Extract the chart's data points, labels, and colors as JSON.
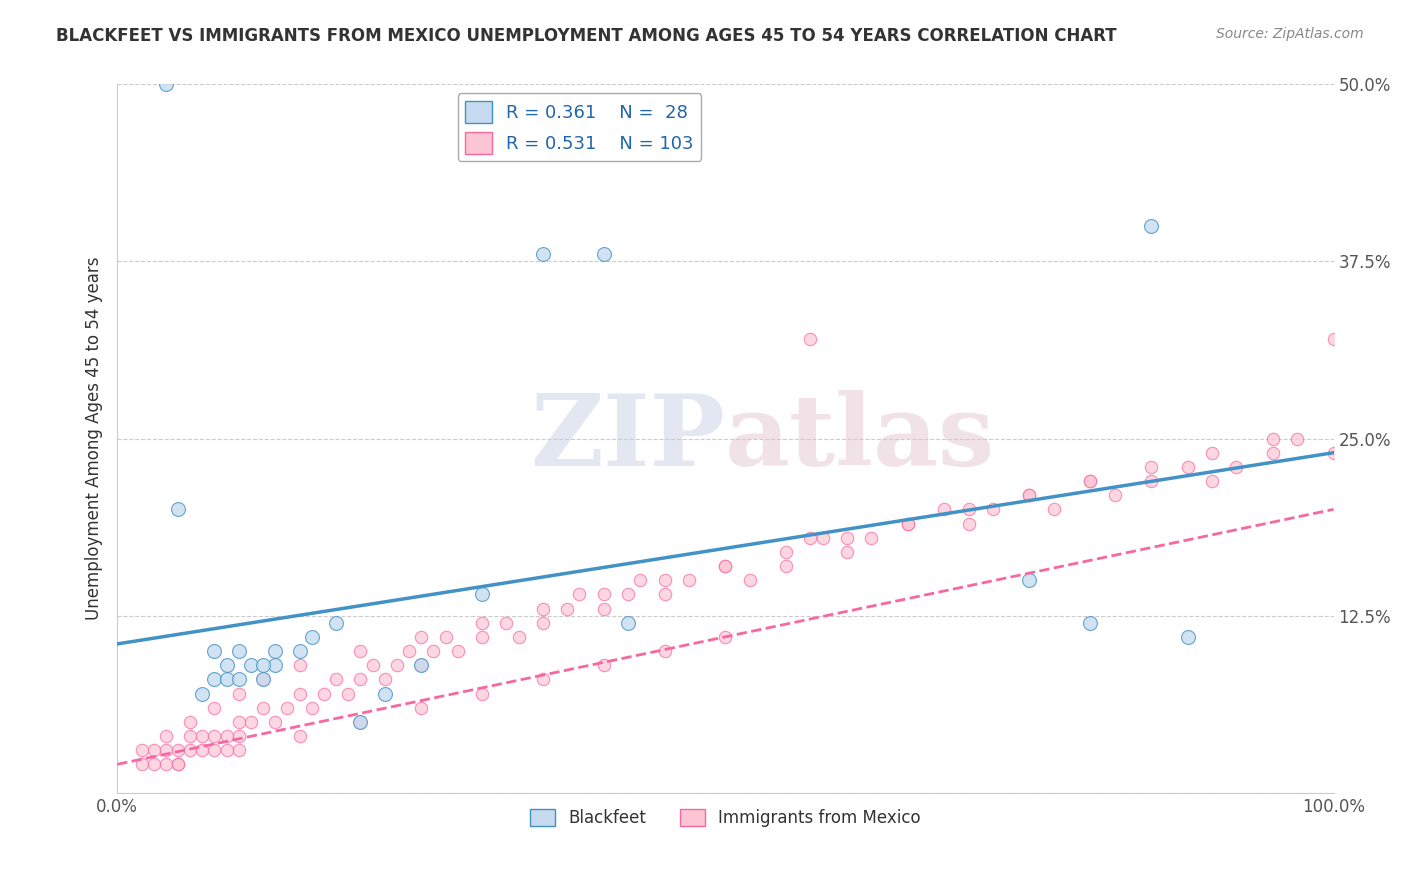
{
  "title": "BLACKFEET VS IMMIGRANTS FROM MEXICO UNEMPLOYMENT AMONG AGES 45 TO 54 YEARS CORRELATION CHART",
  "source": "Source: ZipAtlas.com",
  "ylabel": "Unemployment Among Ages 45 to 54 years",
  "legend_r": [
    0.361,
    0.531
  ],
  "legend_n": [
    28,
    103
  ],
  "xlim": [
    0,
    100
  ],
  "ylim": [
    0,
    50
  ],
  "yticks": [
    0,
    12.5,
    25.0,
    37.5,
    50.0
  ],
  "ytick_labels": [
    "",
    "12.5%",
    "25.0%",
    "37.5%",
    "50.0%"
  ],
  "blue_fill": "#c6dbef",
  "pink_fill": "#fcc5d3",
  "line_blue": "#4292c6",
  "line_pink": "#f768a1",
  "watermark_zip": "ZIP",
  "watermark_atlas": "atlas",
  "blue_x": [
    4,
    5,
    7,
    8,
    9,
    10,
    11,
    12,
    13,
    15,
    16,
    18,
    20,
    22,
    25,
    30,
    35,
    8,
    9,
    10,
    12,
    13,
    75,
    80,
    85,
    88,
    40,
    42
  ],
  "blue_y": [
    50,
    20,
    7,
    8,
    9,
    10,
    9,
    8,
    9,
    10,
    11,
    12,
    5,
    7,
    9,
    14,
    38,
    10,
    8,
    8,
    9,
    10,
    15,
    12,
    40,
    11,
    38,
    12
  ],
  "pink_x": [
    2,
    3,
    3,
    4,
    4,
    5,
    5,
    6,
    6,
    7,
    7,
    8,
    8,
    9,
    9,
    10,
    10,
    11,
    12,
    13,
    14,
    15,
    16,
    17,
    18,
    19,
    20,
    21,
    22,
    23,
    24,
    25,
    26,
    27,
    28,
    30,
    32,
    33,
    35,
    37,
    38,
    40,
    42,
    43,
    45,
    47,
    50,
    52,
    55,
    57,
    58,
    60,
    62,
    65,
    68,
    70,
    72,
    75,
    77,
    80,
    82,
    85,
    88,
    90,
    92,
    95,
    97,
    100,
    2,
    4,
    6,
    8,
    10,
    12,
    15,
    20,
    25,
    30,
    35,
    40,
    45,
    50,
    55,
    60,
    65,
    70,
    75,
    80,
    85,
    90,
    95,
    100,
    5,
    10,
    15,
    20,
    25,
    30,
    35,
    40,
    45,
    50,
    57
  ],
  "pink_y": [
    2,
    3,
    2,
    3,
    2,
    3,
    2,
    3,
    4,
    4,
    3,
    4,
    3,
    4,
    3,
    5,
    4,
    5,
    6,
    5,
    6,
    7,
    6,
    7,
    8,
    7,
    8,
    9,
    8,
    9,
    10,
    9,
    10,
    11,
    10,
    11,
    12,
    11,
    12,
    13,
    14,
    13,
    14,
    15,
    14,
    15,
    16,
    15,
    16,
    32,
    18,
    17,
    18,
    19,
    20,
    19,
    20,
    21,
    20,
    22,
    21,
    22,
    23,
    22,
    23,
    24,
    25,
    24,
    3,
    4,
    5,
    6,
    7,
    8,
    9,
    10,
    11,
    12,
    13,
    14,
    15,
    16,
    17,
    18,
    19,
    20,
    21,
    22,
    23,
    24,
    25,
    32,
    2,
    3,
    4,
    5,
    6,
    7,
    8,
    9,
    10,
    11,
    18
  ],
  "blue_line_x": [
    0,
    100
  ],
  "blue_line_y": [
    10.5,
    24.0
  ],
  "pink_line_x": [
    0,
    100
  ],
  "pink_line_y": [
    2.0,
    20.0
  ],
  "background_color": "#ffffff",
  "grid_color": "#cccccc"
}
